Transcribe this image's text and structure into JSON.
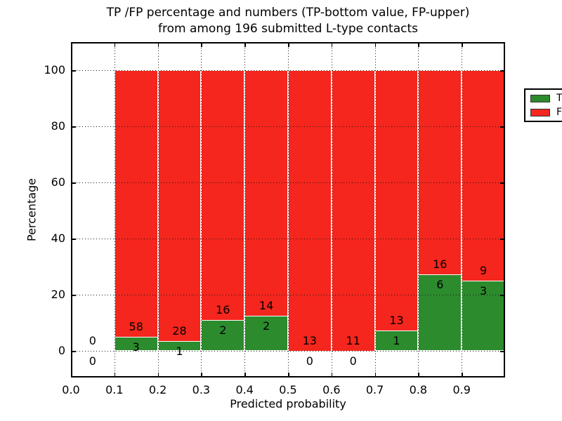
{
  "figure": {
    "title_line1": "TP /FP percentage and numbers (TP-bottom value, FP-upper)",
    "title_line2": "from among 196 submitted L-type contacts",
    "xlabel": "Predicted probability",
    "ylabel": "Percentage"
  },
  "chart_data": {
    "type": "bar",
    "stacked": true,
    "title": "TP /FP percentage and numbers (TP-bottom value, FP-upper)\nfrom among 196 submitted L-type contacts",
    "xlabel": "Predicted probability",
    "ylabel": "Percentage",
    "total_submitted_contacts": 196,
    "xlim": [
      0.0,
      1.0
    ],
    "ylim": [
      -10,
      110
    ],
    "grid": true,
    "x_ticks": [
      "0.0",
      "0.1",
      "0.2",
      "0.3",
      "0.4",
      "0.5",
      "0.6",
      "0.7",
      "0.8",
      "0.9"
    ],
    "x_tick_values": [
      0.0,
      0.1,
      0.2,
      0.3,
      0.4,
      0.5,
      0.6,
      0.7,
      0.8,
      0.9
    ],
    "y_ticks": [
      "0",
      "20",
      "40",
      "60",
      "80",
      "100"
    ],
    "y_tick_values": [
      0,
      20,
      40,
      60,
      80,
      100
    ],
    "colors": {
      "tp": "#2c8b2c",
      "fp": "#f4261d"
    },
    "legend": {
      "position": "upper right",
      "entries": [
        {
          "label": "TP",
          "color": "#2c8b2c"
        },
        {
          "label": "FP",
          "color": "#f4261d"
        }
      ]
    },
    "bins": [
      {
        "range": [
          0.0,
          0.1
        ],
        "tp_count": 0,
        "fp_count": 0,
        "tp_pct": 0,
        "has_bar": false,
        "tp_label": "0",
        "fp_label": "0"
      },
      {
        "range": [
          0.1,
          0.2
        ],
        "tp_count": 3,
        "fp_count": 58,
        "tp_pct": 4.92,
        "has_bar": true,
        "tp_label": "3",
        "fp_label": "58"
      },
      {
        "range": [
          0.2,
          0.3
        ],
        "tp_count": 1,
        "fp_count": 28,
        "tp_pct": 3.45,
        "has_bar": true,
        "tp_label": "1",
        "fp_label": "28"
      },
      {
        "range": [
          0.3,
          0.4
        ],
        "tp_count": 2,
        "fp_count": 16,
        "tp_pct": 11.11,
        "has_bar": true,
        "tp_label": "2",
        "fp_label": "16"
      },
      {
        "range": [
          0.4,
          0.5
        ],
        "tp_count": 2,
        "fp_count": 14,
        "tp_pct": 12.5,
        "has_bar": true,
        "tp_label": "2",
        "fp_label": "14"
      },
      {
        "range": [
          0.5,
          0.6
        ],
        "tp_count": 0,
        "fp_count": 13,
        "tp_pct": 0,
        "has_bar": true,
        "tp_label": "0",
        "fp_label": "13"
      },
      {
        "range": [
          0.6,
          0.7
        ],
        "tp_count": 0,
        "fp_count": 11,
        "tp_pct": 0,
        "has_bar": true,
        "tp_label": "0",
        "fp_label": "11"
      },
      {
        "range": [
          0.7,
          0.8
        ],
        "tp_count": 1,
        "fp_count": 13,
        "tp_pct": 7.14,
        "has_bar": true,
        "tp_label": "1",
        "fp_label": "13"
      },
      {
        "range": [
          0.8,
          0.9
        ],
        "tp_count": 6,
        "fp_count": 16,
        "tp_pct": 27.27,
        "has_bar": true,
        "tp_label": "6",
        "fp_label": "16"
      },
      {
        "range": [
          0.9,
          1.0
        ],
        "tp_count": 3,
        "fp_count": 9,
        "tp_pct": 25.0,
        "has_bar": true,
        "tp_label": "3",
        "fp_label": "9"
      }
    ]
  }
}
